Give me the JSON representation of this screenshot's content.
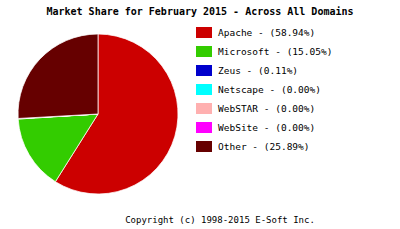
{
  "chart_data": {
    "type": "pie",
    "title": "Market Share for February 2015 - Across All Domains",
    "categories": [
      "Apache - (58.94%)",
      "Microsoft - (15.05%)",
      "Zeus - (0.11%)",
      "Netscape - (0.00%)",
      "WebSTAR - (0.00%)",
      "WebSite - (0.00%)",
      "Other - (25.89%)"
    ],
    "values": [
      58.94,
      15.05,
      0.11,
      0.0,
      0.0,
      0.0,
      25.89
    ],
    "colors": [
      "#cc0000",
      "#33cc00",
      "#0000cc",
      "#00ffff",
      "#ffb0b0",
      "#ff00ff",
      "#660000"
    ],
    "legend": "right",
    "annotations": [
      "Copyright (c) 1998-2015 E-Soft Inc."
    ]
  }
}
